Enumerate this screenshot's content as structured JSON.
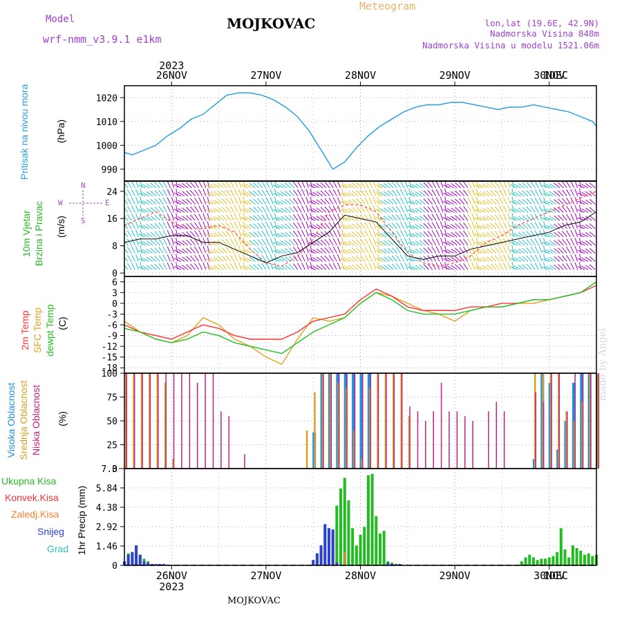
{
  "header": {
    "title": "MOJKOVAC",
    "meteogram_label": "Meteogram",
    "model_label": "Model",
    "model_name": "wrf-nmm_v3.9.1 e1km",
    "coords": "lon,lat (19.6E, 42.9N)",
    "elevation": "Nadmorska Visina 848m",
    "model_elevation": "Nadmorska Visina u modelu 1521.06m"
  },
  "footer": {
    "station": "MOJKOVAC",
    "credit": "made by Angel"
  },
  "time_axis": {
    "year": "2023",
    "days": [
      "26NOV",
      "27NOV",
      "28NOV",
      "29NOV",
      "30NOV",
      "1DEC"
    ],
    "start_hour": 12,
    "end_hour": 132
  },
  "panels": {
    "pressure": {
      "label": "Pritisak na nivou mora",
      "unit": "(hPa)",
      "color": "#2aa0e0"
    },
    "wind": {
      "label_line1": "10m Vjetar",
      "label_line2": "Brzina i Pravac",
      "unit": "(m/s)",
      "compass_n": "N",
      "compass_s": "S",
      "compass_w": "W",
      "compass_e": "E",
      "compass_color": "#a050d0"
    },
    "temp": {
      "label_2m": "2m Temp",
      "label_sfc": "SFC Temp",
      "label_dewpt": "dewpt Temp",
      "unit": "(C)",
      "color_2m": "#ff3030",
      "color_sfc": "#e0a020",
      "color_dewpt": "#20c020"
    },
    "cloud": {
      "label_high": "Visoka Oblacnost",
      "label_mid": "Srednja Oblacnost",
      "label_low": "Niska Oblacnost",
      "unit": "(%)",
      "color_high": "#2090e0",
      "color_mid": "#d8a020",
      "color_low": "#c02080"
    },
    "precip": {
      "label_total": "Ukupna Kisa",
      "label_conv": "Konvek.Kisa",
      "label_frz": "Zaledj.Kisa",
      "label_snow": "Snijeg",
      "label_hail": "Grad",
      "unit": "1hr Precip (mm)",
      "color_total": "#22bb22",
      "color_conv": "#ee3333",
      "color_frz": "#ff8030",
      "color_snow": "#3040d0",
      "color_hail": "#30c0c0"
    }
  },
  "chart_data": [
    {
      "type": "line",
      "title": "Pritisak na nivou mora",
      "ylabel": "(hPa)",
      "ylim": [
        985,
        1025
      ],
      "yticks": [
        990,
        1000,
        1010,
        1020
      ],
      "x_hours": [
        12,
        14,
        17,
        20,
        23,
        26,
        29,
        32,
        35,
        38,
        41,
        44,
        47,
        50,
        53,
        56,
        59,
        62,
        65,
        68,
        71,
        74,
        77,
        80,
        83,
        86,
        89,
        92,
        95,
        98,
        101,
        104,
        107,
        110,
        113,
        116,
        119,
        122,
        125,
        128,
        131,
        132
      ],
      "series": [
        {
          "name": "pressure",
          "values": [
            997,
            996,
            998,
            1000,
            1004,
            1007,
            1011,
            1013,
            1017,
            1021,
            1022,
            1022,
            1021,
            1019,
            1016,
            1012,
            1006,
            998,
            990,
            993,
            999,
            1004,
            1008,
            1011,
            1014,
            1016,
            1017,
            1017,
            1018,
            1018,
            1017,
            1016,
            1015,
            1016,
            1016,
            1017,
            1016,
            1015,
            1014,
            1012,
            1010,
            1008
          ]
        }
      ]
    },
    {
      "type": "line",
      "title": "10m Vjetar Brzina i Pravac",
      "ylabel": "(m/s)",
      "ylim": [
        -1,
        27
      ],
      "yticks": [
        0,
        8,
        16,
        24
      ],
      "x_hours": [
        12,
        16,
        20,
        24,
        28,
        32,
        36,
        40,
        44,
        48,
        52,
        56,
        60,
        64,
        68,
        72,
        76,
        80,
        84,
        88,
        92,
        96,
        100,
        104,
        108,
        112,
        116,
        120,
        124,
        128,
        132
      ],
      "series": [
        {
          "name": "speed",
          "values": [
            9,
            10,
            10,
            11,
            11,
            9,
            9,
            7,
            5,
            3,
            5,
            6,
            9,
            12,
            17,
            16,
            15,
            10,
            5,
            4,
            5,
            5,
            7,
            8,
            9,
            10,
            11,
            12,
            14,
            15,
            18
          ]
        },
        {
          "name": "gust",
          "values": [
            14,
            16,
            18,
            15,
            13,
            13,
            14,
            12,
            7,
            3,
            2,
            5,
            10,
            18,
            20,
            20,
            18,
            12,
            6,
            3,
            2,
            3,
            5,
            9,
            11,
            14,
            16,
            18,
            20,
            22,
            24
          ]
        }
      ]
    },
    {
      "type": "line",
      "title": "Temperature",
      "ylabel": "(C)",
      "ylim": [
        -19.5,
        7.5
      ],
      "yticks": [
        -18,
        -15,
        -12,
        -9,
        -6,
        -3,
        0,
        3,
        6
      ],
      "x_hours": [
        12,
        16,
        20,
        24,
        28,
        32,
        36,
        40,
        44,
        48,
        52,
        56,
        60,
        64,
        68,
        72,
        76,
        80,
        84,
        88,
        92,
        96,
        100,
        104,
        108,
        112,
        116,
        120,
        124,
        128,
        132
      ],
      "series": [
        {
          "name": "2m Temp",
          "values": [
            -6,
            -8,
            -9,
            -10,
            -8,
            -6,
            -7,
            -9,
            -10,
            -10,
            -10,
            -8,
            -5,
            -4,
            -3,
            1,
            4,
            2,
            -1,
            -2,
            -2,
            -2,
            -1,
            -1,
            0,
            0,
            1,
            1,
            2,
            3,
            5
          ]
        },
        {
          "name": "SFC Temp",
          "values": [
            -5,
            -8,
            -10,
            -11,
            -9,
            -4,
            -6,
            -10,
            -12,
            -15,
            -17,
            -10,
            -4,
            -5,
            -4,
            0,
            3,
            2,
            0,
            -2,
            -3,
            -5,
            -2,
            -1,
            -1,
            0,
            0,
            1,
            2,
            3,
            6
          ]
        },
        {
          "name": "dewpt Temp",
          "values": [
            -7,
            -8,
            -10,
            -11,
            -10,
            -8,
            -9,
            -11,
            -12,
            -13,
            -14,
            -11,
            -8,
            -6,
            -4,
            0,
            3,
            1,
            -2,
            -3,
            -3,
            -3,
            -2,
            -1,
            -1,
            0,
            1,
            1,
            2,
            3,
            6
          ]
        }
      ]
    },
    {
      "type": "bar",
      "title": "Oblacnost",
      "ylabel": "(%)",
      "ylim": [
        0,
        100
      ],
      "yticks": [
        0,
        25,
        50,
        75,
        100
      ],
      "x_hours": [
        12,
        14,
        16,
        18,
        20,
        22,
        24,
        26,
        28,
        30,
        32,
        34,
        36,
        38,
        40,
        42,
        44,
        46,
        48,
        50,
        52,
        54,
        56,
        58,
        60,
        62,
        64,
        66,
        68,
        70,
        72,
        74,
        76,
        78,
        80,
        82,
        84,
        86,
        88,
        90,
        92,
        94,
        96,
        98,
        100,
        102,
        104,
        106,
        108,
        110,
        112,
        114,
        116,
        118,
        120,
        122,
        124,
        126,
        128,
        130,
        132
      ],
      "series": [
        {
          "name": "Visoka Oblacnost",
          "values": [
            0,
            0,
            0,
            0,
            0,
            0,
            0,
            0,
            0,
            0,
            0,
            0,
            0,
            0,
            0,
            0,
            0,
            0,
            0,
            0,
            0,
            0,
            0,
            0,
            38,
            100,
            100,
            100,
            100,
            100,
            100,
            100,
            0,
            0,
            0,
            0,
            0,
            0,
            0,
            0,
            0,
            0,
            0,
            0,
            0,
            0,
            0,
            0,
            0,
            0,
            0,
            0,
            10,
            100,
            90,
            20,
            50,
            90,
            100,
            100,
            100
          ]
        },
        {
          "name": "Srednja Oblacnost",
          "values": [
            100,
            100,
            100,
            100,
            100,
            90,
            10,
            0,
            0,
            0,
            0,
            0,
            0,
            0,
            0,
            0,
            0,
            0,
            0,
            0,
            0,
            0,
            0,
            40,
            80,
            100,
            100,
            90,
            85,
            40,
            10,
            85,
            100,
            100,
            100,
            100,
            55,
            0,
            0,
            0,
            0,
            0,
            0,
            0,
            0,
            0,
            0,
            0,
            0,
            0,
            0,
            0,
            100,
            100,
            100,
            100,
            60,
            50,
            70,
            100,
            100
          ]
        },
        {
          "name": "Niska Oblacnost",
          "values": [
            100,
            100,
            100,
            100,
            100,
            100,
            100,
            100,
            100,
            90,
            100,
            100,
            60,
            55,
            0,
            15,
            0,
            0,
            0,
            0,
            0,
            0,
            0,
            0,
            0,
            100,
            100,
            100,
            100,
            100,
            100,
            100,
            100,
            100,
            100,
            100,
            65,
            60,
            50,
            60,
            90,
            60,
            60,
            55,
            50,
            0,
            60,
            70,
            60,
            0,
            0,
            0,
            80,
            70,
            100,
            100,
            60,
            100,
            100,
            100,
            100
          ]
        }
      ]
    },
    {
      "type": "bar",
      "title": "1hr Precip",
      "ylabel": "1hr Precip (mm)",
      "ylim": [
        0,
        7.3
      ],
      "yticks": [
        0,
        1.46,
        2.92,
        4.38,
        5.84,
        7.3
      ],
      "x_hours": [
        12,
        13,
        14,
        15,
        16,
        17,
        18,
        19,
        20,
        21,
        22,
        60,
        61,
        62,
        63,
        64,
        65,
        66,
        67,
        68,
        69,
        70,
        71,
        72,
        73,
        74,
        75,
        76,
        77,
        78,
        79,
        80,
        81,
        82,
        113,
        114,
        115,
        116,
        117,
        118,
        119,
        120,
        121,
        122,
        123,
        124,
        125,
        126,
        127,
        128,
        129,
        130,
        131,
        132
      ],
      "series": [
        {
          "name": "Ukupna Kisa",
          "values": [
            0.3,
            0.9,
            1.0,
            1.5,
            0.8,
            0.5,
            0.3,
            0.1,
            0.1,
            0.1,
            0.1,
            0.4,
            0.9,
            1.5,
            3.1,
            2.8,
            2.7,
            4.5,
            5.8,
            6.6,
            4.9,
            2.8,
            1.5,
            2.3,
            2.9,
            6.8,
            6.9,
            3.7,
            2.4,
            2.6,
            0.3,
            0.2,
            0.1,
            0.1,
            0.3,
            0.6,
            0.8,
            0.6,
            0.4,
            0.5,
            0.5,
            0.6,
            0.7,
            1.0,
            2.8,
            1.2,
            0.6,
            1.5,
            1.3,
            1.1,
            0.8,
            0.9,
            0.7,
            0.8
          ]
        },
        {
          "name": "Konvek.Kisa",
          "values": [
            0,
            0,
            0,
            0,
            0,
            0,
            0,
            0,
            0,
            0,
            0,
            0,
            0,
            0,
            0,
            0,
            0,
            0,
            0,
            1.0,
            0,
            0,
            0,
            0,
            0,
            0,
            0,
            0,
            0,
            0,
            0,
            0,
            0,
            0,
            0,
            0,
            0,
            0,
            0,
            0,
            0,
            0,
            0,
            0,
            0,
            0,
            0,
            0,
            0,
            0,
            0,
            0,
            0,
            0
          ]
        },
        {
          "name": "Zaledj.Kisa",
          "values": [
            0,
            0,
            0,
            0,
            0,
            0,
            0,
            0,
            0,
            0,
            0,
            0,
            0,
            0,
            0,
            0,
            0,
            0,
            0,
            0,
            0,
            0,
            0,
            0,
            0,
            0,
            0,
            0,
            0,
            0,
            0,
            0,
            0,
            0,
            0,
            0,
            0,
            0,
            0,
            0,
            0,
            0,
            0,
            0,
            0,
            0,
            0,
            0,
            0,
            0,
            0,
            0,
            0,
            0
          ]
        },
        {
          "name": "Snijeg",
          "values": [
            0.3,
            0.8,
            1.0,
            1.5,
            0.8,
            0.3,
            0.2,
            0.1,
            0.1,
            0.1,
            0.1,
            0.4,
            0.9,
            1.5,
            3.1,
            2.8,
            2.7,
            0.2,
            0,
            0,
            0,
            0,
            0,
            0,
            0,
            0,
            0,
            0,
            0,
            0,
            0.2,
            0.1,
            0.1,
            0.1,
            0,
            0,
            0,
            0,
            0,
            0,
            0,
            0,
            0,
            0,
            0,
            0,
            0,
            0,
            0,
            0,
            0,
            0,
            0,
            0
          ]
        },
        {
          "name": "Grad",
          "values": [
            0,
            0,
            0,
            0,
            0,
            0,
            0,
            0,
            0,
            0,
            0,
            0,
            0,
            0,
            0,
            0,
            0,
            0,
            0,
            0,
            0,
            0,
            0,
            0,
            0,
            0,
            0,
            0,
            0,
            0,
            0,
            0,
            0,
            0,
            0,
            0,
            0,
            0,
            0,
            0,
            0,
            0,
            0,
            0,
            0,
            0,
            0,
            0,
            0,
            0,
            0,
            0,
            0,
            0
          ]
        }
      ]
    }
  ]
}
